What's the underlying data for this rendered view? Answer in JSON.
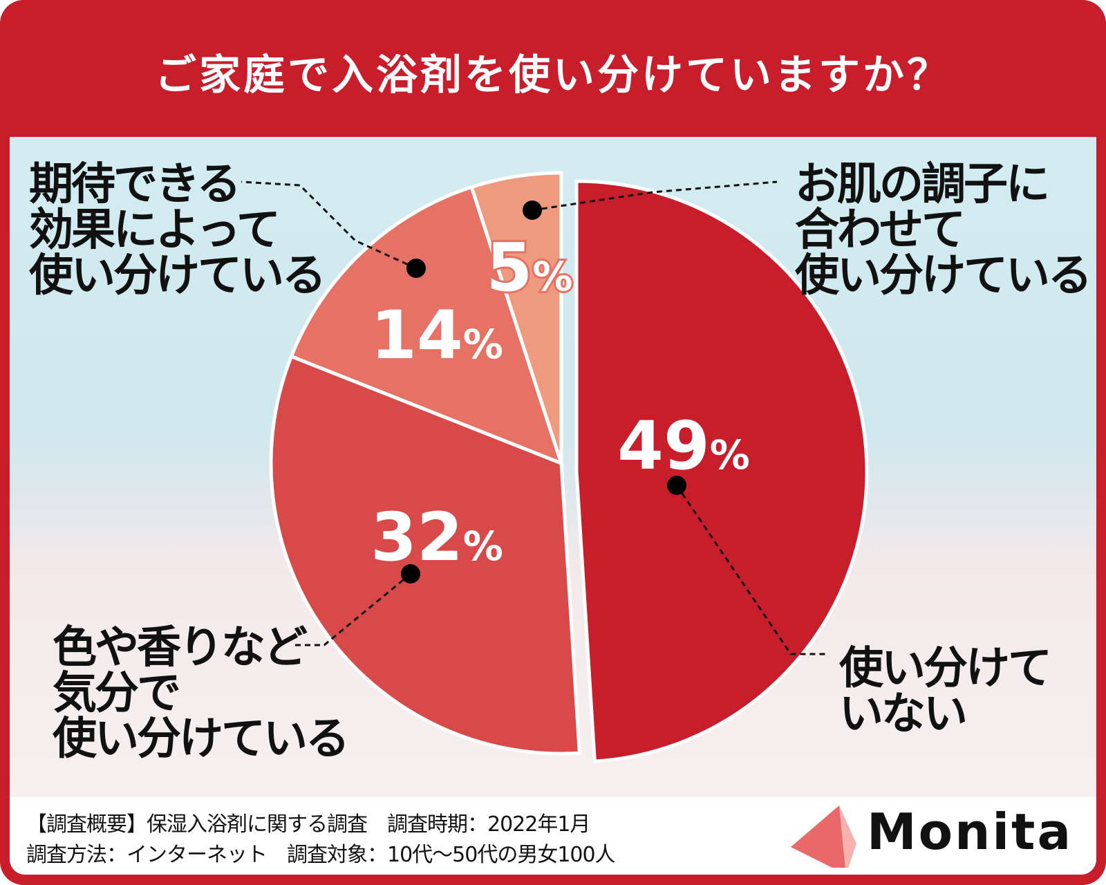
{
  "title": "ご家庭で入浴剤を使い分けていますか？",
  "chart_data": {
    "type": "pie",
    "title": "ご家庭で入浴剤を使い分けていますか？",
    "slices": [
      {
        "label": "使い分けていない",
        "label_lines": [
          "使い分けて",
          "いない"
        ],
        "value": 49,
        "display": "49",
        "color": "#c81e2c",
        "exploded": true
      },
      {
        "label": "色や香りなど気分で使い分けている",
        "label_lines": [
          "色や香りなど",
          "気分で",
          "使い分けている"
        ],
        "value": 32,
        "display": "32",
        "color": "#d8494a",
        "exploded": false
      },
      {
        "label": "期待できる効果によって使い分けている",
        "label_lines": [
          "期待できる",
          "効果によって",
          "使い分けている"
        ],
        "value": 14,
        "display": "14",
        "color": "#e57264",
        "exploded": false
      },
      {
        "label": "お肌の調子に合わせて使い分けている",
        "label_lines": [
          "お肌の調子に",
          "合わせて",
          "使い分けている"
        ],
        "value": 5,
        "display": "5",
        "color": "#ee9a7e",
        "exploded": false
      }
    ],
    "unit": "%",
    "start": "top",
    "direction": "clockwise"
  },
  "footer": {
    "line1": "【調査概要】保湿入浴剤に関する調査　調査時期：2022年1月",
    "line2": "調査方法：インターネット　調査対象：10代〜50代の男女100人"
  },
  "brand": {
    "name": "Monita",
    "color": "#e9686a"
  }
}
